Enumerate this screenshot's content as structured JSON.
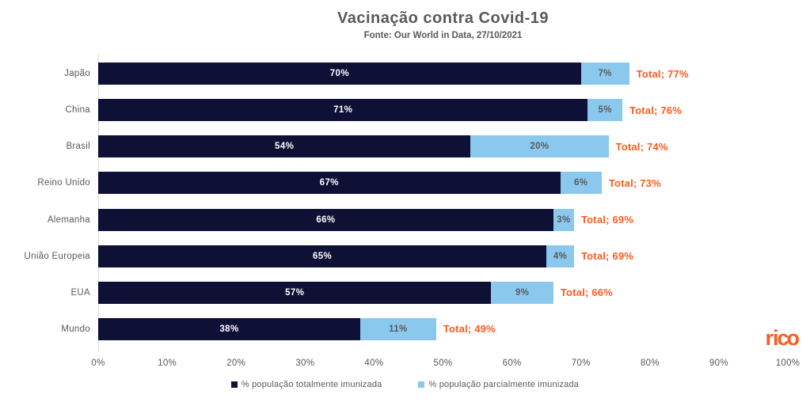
{
  "header": {
    "title": "Vacinação contra Covid-19",
    "subtitle": "Fonte: Our World in Data, 27/10/2021"
  },
  "logo": {
    "text_ri": "ri",
    "text_co": "co",
    "full_text": "rico"
  },
  "colors": {
    "navy": "#0e1036",
    "light_blue": "#8ac9ed",
    "accent_orange": "#f85c22",
    "text_gray": "#595959",
    "axis_line_gray": "#d9d9d9",
    "white": "#ffffff"
  },
  "chart_data": {
    "type": "bar",
    "orientation": "horizontal-stacked",
    "title": "Vacinação contra Covid-19",
    "subtitle": "Fonte: Our World in Data, 27/10/2021",
    "categories": [
      "Japão",
      "China",
      "Brasil",
      "Reino Unido",
      "Alemanha",
      "União Europeia",
      "EUA",
      "Mundo"
    ],
    "series": [
      {
        "name": "% população  totalmente imunizada",
        "color": "#0e1036",
        "label_color": "#ffffff",
        "values": [
          70,
          71,
          54,
          67,
          66,
          65,
          57,
          38
        ]
      },
      {
        "name": "% população parcialmente imunizada",
        "color": "#8ac9ed",
        "label_color": "#595959",
        "values": [
          7,
          5,
          20,
          6,
          3,
          4,
          9,
          11
        ]
      }
    ],
    "totals": [
      77,
      76,
      74,
      73,
      69,
      69,
      66,
      49
    ],
    "total_label_prefix": "Total; ",
    "value_suffix": "%",
    "x_ticks": [
      "0%",
      "10%",
      "20%",
      "30%",
      "40%",
      "50%",
      "60%",
      "70%",
      "80%",
      "90%",
      "100%"
    ],
    "xlim": [
      0,
      100
    ],
    "grid": false,
    "legend_position": "bottom"
  }
}
